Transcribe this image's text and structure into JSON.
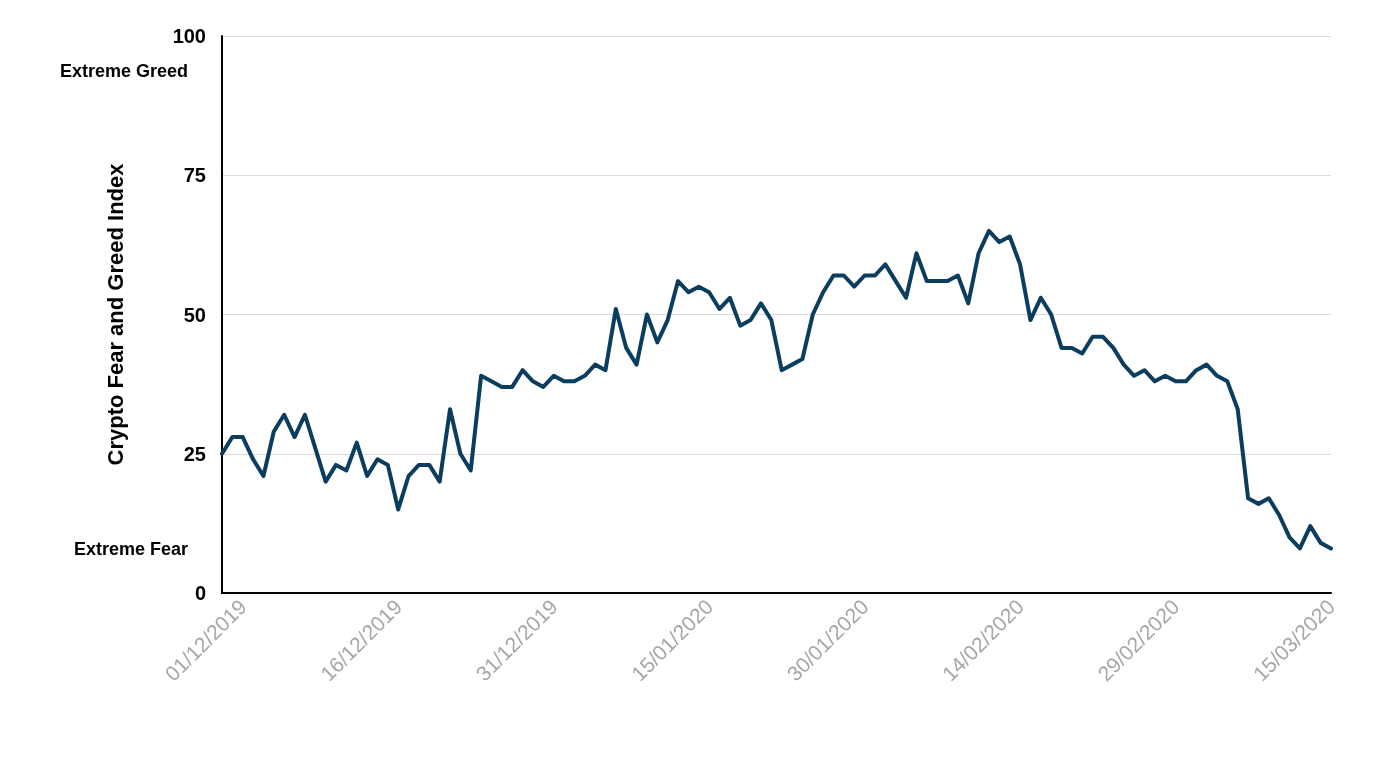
{
  "chart_data": {
    "type": "line",
    "ylabel": "Crypto Fear and Greed Index",
    "x": [
      "2019-11-29",
      "2019-11-30",
      "2019-12-01",
      "2019-12-02",
      "2019-12-03",
      "2019-12-04",
      "2019-12-05",
      "2019-12-06",
      "2019-12-07",
      "2019-12-08",
      "2019-12-09",
      "2019-12-10",
      "2019-12-11",
      "2019-12-12",
      "2019-12-13",
      "2019-12-14",
      "2019-12-15",
      "2019-12-16",
      "2019-12-17",
      "2019-12-18",
      "2019-12-19",
      "2019-12-20",
      "2019-12-21",
      "2019-12-22",
      "2019-12-23",
      "2019-12-24",
      "2019-12-25",
      "2019-12-26",
      "2019-12-27",
      "2019-12-28",
      "2019-12-29",
      "2019-12-30",
      "2019-12-31",
      "2020-01-01",
      "2020-01-02",
      "2020-01-03",
      "2020-01-04",
      "2020-01-05",
      "2020-01-06",
      "2020-01-07",
      "2020-01-08",
      "2020-01-09",
      "2020-01-10",
      "2020-01-11",
      "2020-01-12",
      "2020-01-13",
      "2020-01-14",
      "2020-01-15",
      "2020-01-16",
      "2020-01-17",
      "2020-01-18",
      "2020-01-19",
      "2020-01-20",
      "2020-01-21",
      "2020-01-22",
      "2020-01-23",
      "2020-01-24",
      "2020-01-25",
      "2020-01-26",
      "2020-01-27",
      "2020-01-28",
      "2020-01-29",
      "2020-01-30",
      "2020-01-31",
      "2020-02-01",
      "2020-02-02",
      "2020-02-03",
      "2020-02-04",
      "2020-02-05",
      "2020-02-06",
      "2020-02-07",
      "2020-02-08",
      "2020-02-09",
      "2020-02-10",
      "2020-02-11",
      "2020-02-12",
      "2020-02-13",
      "2020-02-14",
      "2020-02-15",
      "2020-02-16",
      "2020-02-17",
      "2020-02-18",
      "2020-02-19",
      "2020-02-20",
      "2020-02-21",
      "2020-02-22",
      "2020-02-23",
      "2020-02-24",
      "2020-02-25",
      "2020-02-26",
      "2020-02-27",
      "2020-02-28",
      "2020-02-29",
      "2020-03-01",
      "2020-03-02",
      "2020-03-03",
      "2020-03-04",
      "2020-03-05",
      "2020-03-06",
      "2020-03-07",
      "2020-03-08",
      "2020-03-09",
      "2020-03-10",
      "2020-03-11",
      "2020-03-12",
      "2020-03-13",
      "2020-03-14",
      "2020-03-15"
    ],
    "series": [
      {
        "color": "#0b3d5e",
        "values": [
          25,
          28,
          28,
          24,
          21,
          29,
          32,
          28,
          32,
          26,
          20,
          23,
          22,
          27,
          21,
          24,
          23,
          15,
          21,
          23,
          23,
          20,
          33,
          25,
          22,
          39,
          38,
          37,
          37,
          40,
          38,
          37,
          39,
          38,
          38,
          39,
          41,
          40,
          51,
          44,
          41,
          50,
          45,
          49,
          56,
          54,
          55,
          54,
          51,
          53,
          48,
          49,
          52,
          49,
          40,
          41,
          42,
          50,
          54,
          57,
          57,
          55,
          57,
          57,
          59,
          56,
          53,
          61,
          56,
          56,
          56,
          57,
          52,
          61,
          65,
          63,
          64,
          59,
          49,
          53,
          50,
          44,
          44,
          43,
          46,
          46,
          44,
          41,
          39,
          40,
          38,
          39,
          38,
          38,
          40,
          41,
          39,
          38,
          33,
          17,
          16,
          17,
          14,
          10,
          8,
          12,
          9,
          8
        ]
      }
    ],
    "xlim": [
      "2019-11-29",
      "2020-03-15"
    ],
    "xticks": [
      {
        "value": "2019-12-01",
        "label": "01/12/2019"
      },
      {
        "value": "2019-12-16",
        "label": "16/12/2019"
      },
      {
        "value": "2019-12-31",
        "label": "31/12/2019"
      },
      {
        "value": "2020-01-15",
        "label": "15/01/2020"
      },
      {
        "value": "2020-01-30",
        "label": "30/01/2020"
      },
      {
        "value": "2020-02-14",
        "label": "14/02/2020"
      },
      {
        "value": "2020-02-29",
        "label": "29/02/2020"
      },
      {
        "value": "2020-03-15",
        "label": "15/03/2020"
      }
    ],
    "ylim": [
      0,
      100
    ],
    "yticks": [
      0,
      25,
      50,
      75,
      100
    ],
    "annotations": [
      "Extreme Greed",
      "Extreme Fear"
    ],
    "grid": "y",
    "marker": "none",
    "line_style": "solid"
  }
}
